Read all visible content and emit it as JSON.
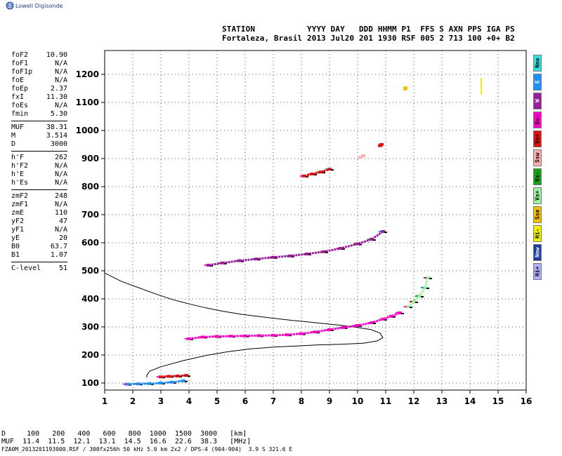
{
  "header": {
    "brand": "Lowell Digisonde",
    "line1": "STATION           YYYY DAY   DDD HHMM P1  FFS S AXN PPS IGA PS",
    "line2": "Fortaleza, Brasil 2013 Jul20 201 1930 RSF 005 2 713 100 +0+ B2"
  },
  "params": {
    "group1": [
      {
        "k": "foF2",
        "v": "10.90"
      },
      {
        "k": "foF1",
        "v": "N/A"
      },
      {
        "k": "foF1p",
        "v": "N/A"
      },
      {
        "k": "foE",
        "v": "N/A"
      },
      {
        "k": "foEp",
        "v": "2.37"
      },
      {
        "k": "fxI",
        "v": "11.30"
      },
      {
        "k": "foEs",
        "v": "N/A"
      },
      {
        "k": "fmin",
        "v": "5.30"
      }
    ],
    "group2": [
      {
        "k": "MUF",
        "v": "38.31"
      },
      {
        "k": "M",
        "v": "3.514"
      },
      {
        "k": "D",
        "v": "3000"
      }
    ],
    "group3": [
      {
        "k": "h'F",
        "v": "262"
      },
      {
        "k": "h'F2",
        "v": "N/A"
      },
      {
        "k": "h'E",
        "v": "N/A"
      },
      {
        "k": "h'Es",
        "v": "N/A"
      }
    ],
    "group4": [
      {
        "k": "zmF2",
        "v": "248"
      },
      {
        "k": "zmF1",
        "v": "N/A"
      },
      {
        "k": "zmE",
        "v": "110"
      },
      {
        "k": "yF2",
        "v": "47"
      },
      {
        "k": "yF1",
        "v": "N/A"
      },
      {
        "k": "yE",
        "v": "20"
      },
      {
        "k": "B0",
        "v": "63.7"
      },
      {
        "k": "B1",
        "v": "1.07"
      }
    ],
    "group5": [
      {
        "k": "C-level",
        "v": "51"
      }
    ]
  },
  "legend": [
    {
      "label": "Nno",
      "color": "#33e0e0"
    },
    {
      "label": "E",
      "color": "#1e90ff"
    },
    {
      "label": "W",
      "color": "#9a1e9a"
    },
    {
      "label": "Vo-",
      "color": "#ff00c8"
    },
    {
      "label": "Vo+",
      "color": "#e01010"
    },
    {
      "label": "Ssw",
      "color": "#ffb0b0"
    },
    {
      "label": "Vx-",
      "color": "#18a018"
    },
    {
      "label": "Vx+",
      "color": "#a0f0a0"
    },
    {
      "label": "Sse",
      "color": "#f5c000"
    },
    {
      "label": "Hi-",
      "color": "#f0f000"
    },
    {
      "label": "Nnw",
      "color": "#1c3c9c"
    },
    {
      "label": "Hi+",
      "color": "#b0b0f8"
    }
  ],
  "bottom": {
    "d_line": "D     100   200   400   600   800  1000  1500  3000   [km]",
    "muf_line": "MUF  11.4  11.5  12.1  13.1  14.5  16.6  22.6  38.3   [MHz]",
    "footer": "FZA0M_2013201193000.RSF / 300fx256h 50 kHz 5.0 km 2x2 / DPS-4 (904-904)  3.9 S 321.6 E"
  },
  "chart_data": {
    "type": "scatter",
    "xlabel": "",
    "ylabel": "",
    "xlim": [
      1,
      16
    ],
    "ylim": [
      75,
      1285
    ],
    "xticks": [
      1,
      2,
      3,
      4,
      5,
      6,
      7,
      8,
      9,
      10,
      11,
      12,
      13,
      14,
      15,
      16
    ],
    "yticks": [
      100,
      200,
      300,
      400,
      500,
      600,
      700,
      800,
      900,
      1000,
      1100,
      1200
    ],
    "grid": "dotted",
    "profile": {
      "name": "electron-density-profile",
      "x": [
        1.0,
        1.6,
        2.2,
        2.8,
        3.4,
        4.0,
        4.6,
        5.2,
        5.8,
        6.4,
        7.0,
        7.6,
        8.2,
        8.8,
        9.4,
        10.0,
        10.5,
        10.8,
        10.9,
        10.7,
        10.2,
        9.4,
        8.6,
        7.8,
        7.0,
        6.2,
        5.4,
        4.6,
        3.8,
        3.0,
        2.6,
        2.5,
        2.5
      ],
      "y": [
        492,
        462,
        440,
        418,
        398,
        382,
        368,
        356,
        346,
        338,
        331,
        324,
        318,
        312,
        306,
        298,
        290,
        278,
        262,
        250,
        242,
        238,
        236,
        232,
        228,
        222,
        212,
        198,
        180,
        158,
        142,
        128,
        120
      ]
    },
    "traces": [
      {
        "name": "F-trace",
        "x": [
          4.0,
          4.5,
          5.0,
          5.5,
          6.0,
          6.5,
          7.0,
          7.5,
          8.0,
          8.5,
          9.0,
          9.5,
          10.0,
          10.5,
          10.9,
          11.2,
          11.5
        ],
        "y": [
          258,
          264,
          266,
          267,
          268,
          269,
          270,
          272,
          276,
          282,
          290,
          298,
          305,
          315,
          328,
          338,
          350
        ],
        "color": "#ff00c8"
      },
      {
        "name": "F-trace-x",
        "x": [
          11.8,
          12.0,
          12.2,
          12.4,
          12.5
        ],
        "y": [
          372,
          390,
          410,
          440,
          475
        ],
        "color": "#a0f0a0"
      },
      {
        "name": "second-hop",
        "x": [
          4.7,
          5.2,
          5.8,
          6.4,
          7.0,
          7.6,
          8.2,
          8.8,
          9.4,
          10.0,
          10.5,
          10.9
        ],
        "y": [
          520,
          528,
          536,
          542,
          548,
          553,
          560,
          568,
          580,
          596,
          612,
          640
        ],
        "color": "#9a1e9a"
      },
      {
        "name": "third-hop",
        "x": [
          8.1,
          8.4,
          8.7,
          9.0
        ],
        "y": [
          838,
          845,
          852,
          862
        ],
        "color": "#e01010"
      },
      {
        "name": "E-trace",
        "x": [
          1.8,
          2.2,
          2.6,
          3.0,
          3.4,
          3.8
        ],
        "y": [
          96,
          97,
          98,
          100,
          103,
          108
        ],
        "color": "#1e90ff"
      },
      {
        "name": "Es-trace",
        "x": [
          3.0,
          3.3,
          3.6,
          3.9
        ],
        "y": [
          122,
          124,
          125,
          127
        ],
        "color": "#e01010"
      },
      {
        "name": "spur-sse",
        "x": [
          11.7,
          11.7
        ],
        "y": [
          1148,
          1152
        ],
        "color": "#f5c000"
      },
      {
        "name": "spur-hi",
        "x": [
          14.4,
          14.4,
          14.4,
          14.4
        ],
        "y": [
          1135,
          1150,
          1165,
          1180
        ],
        "color": "#f0f000"
      },
      {
        "name": "spur-950",
        "x": [
          10.8,
          10.85
        ],
        "y": [
          946,
          950
        ],
        "color": "#e01010"
      },
      {
        "name": "spur-905",
        "x": [
          10.1,
          10.2
        ],
        "y": [
          904,
          910
        ],
        "color": "#ffb0b0"
      }
    ]
  }
}
